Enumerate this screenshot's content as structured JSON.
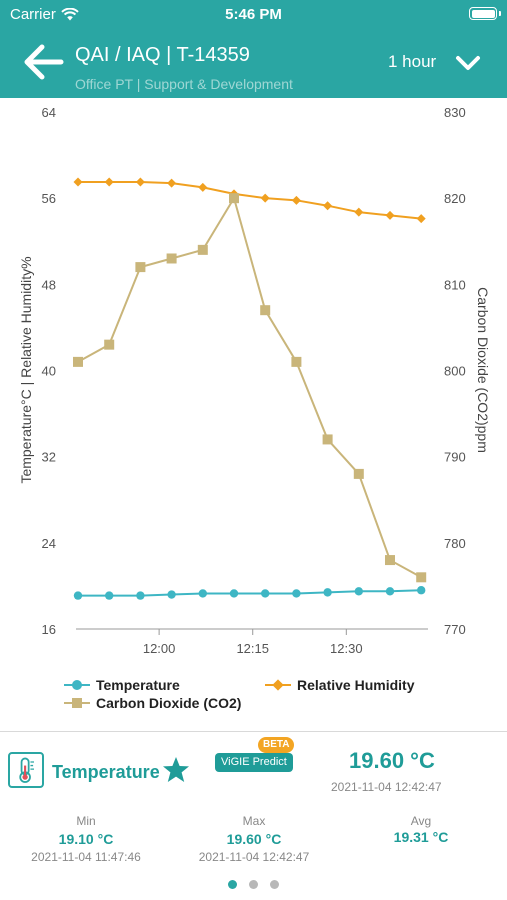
{
  "status_bar": {
    "carrier": "Carrier",
    "time": "5:46 PM"
  },
  "nav": {
    "title": "QAI / IAQ | T-14359",
    "subtitle": "Office PT | Support & Development",
    "period": "1 hour",
    "back_icon": "arrow-left-icon",
    "dropdown_icon": "chevron-down-icon"
  },
  "colors": {
    "brand": "#2aa6a3",
    "temperature": "#3eb6c4",
    "humidity": "#f0a020",
    "co2": "#c9b57a",
    "beta": "#f3a523"
  },
  "chart_data": {
    "type": "line",
    "x_ticks": [
      "12:00",
      "12:15",
      "12:30"
    ],
    "x": [
      "11:47",
      "11:52",
      "11:57",
      "12:02",
      "12:07",
      "12:12",
      "12:17",
      "12:22",
      "12:27",
      "12:32",
      "12:37",
      "12:42"
    ],
    "y_left": {
      "label": "Temperature°C | Relative Humidity%",
      "ticks": [
        16,
        24,
        32,
        40,
        48,
        56,
        64
      ],
      "range": [
        16,
        64
      ]
    },
    "y_right": {
      "label": "Carbon Dioxide (CO2)ppm",
      "ticks": [
        770,
        780,
        790,
        800,
        810,
        820,
        830
      ],
      "range": [
        770,
        830
      ]
    },
    "series": [
      {
        "name": "Temperature",
        "axis": "left",
        "marker": "circle",
        "x": [
          0,
          1,
          2,
          3,
          4,
          5,
          6,
          7,
          8,
          9,
          10,
          11
        ],
        "values": [
          19.1,
          19.1,
          19.1,
          19.2,
          19.3,
          19.3,
          19.3,
          19.3,
          19.4,
          19.5,
          19.5,
          19.6
        ]
      },
      {
        "name": "Relative Humidity",
        "axis": "left",
        "marker": "diamond",
        "x": [
          0,
          1,
          2,
          3,
          4,
          5,
          6,
          7,
          8,
          9,
          10,
          11
        ],
        "values": [
          57.5,
          57.5,
          57.5,
          57.4,
          57.0,
          56.4,
          56.0,
          55.8,
          55.3,
          54.7,
          54.4,
          54.1
        ]
      },
      {
        "name": "Carbon Dioxide (CO2)",
        "axis": "right",
        "marker": "square",
        "x": [
          0,
          1,
          2,
          3,
          4,
          5,
          6,
          7,
          8,
          9,
          10,
          11
        ],
        "values": [
          801,
          803,
          812,
          813,
          814,
          820,
          807,
          801,
          792,
          788,
          778,
          776
        ]
      }
    ],
    "legend_position": "bottom",
    "grid": false
  },
  "sensor": {
    "icon": "thermometer-icon",
    "name": "Temperature",
    "favorite_icon": "star-icon",
    "beta": "BETA",
    "predict": "ViGIE Predict",
    "current_value": "19.60 °C",
    "current_time": "2021-11-04 12:42:47",
    "stats": [
      {
        "label": "Min",
        "value": "19.10 °C",
        "time": "2021-11-04 11:47:46"
      },
      {
        "label": "Max",
        "value": "19.60 °C",
        "time": "2021-11-04 12:42:47"
      },
      {
        "label": "Avg",
        "value": "19.31 °C",
        "time": ""
      }
    ]
  },
  "pager": {
    "pages": 3,
    "current": 1
  }
}
